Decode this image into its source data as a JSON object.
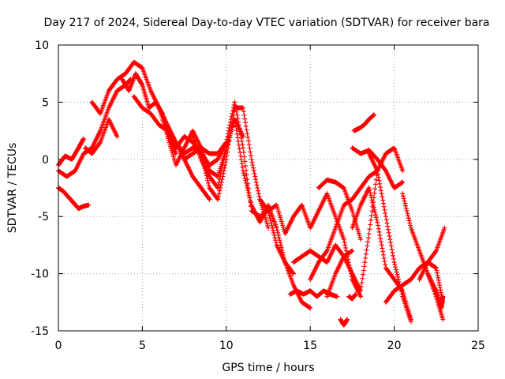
{
  "chart_data": {
    "type": "scatter",
    "title": "Day 217 of 2024, Sidereal Day-to-day VTEC variation (SDTVAR) for receiver bara",
    "xlabel": "GPS time / hours",
    "ylabel": "SDTVAR / TECUs",
    "xlim": [
      0,
      25
    ],
    "ylim": [
      -15,
      10
    ],
    "xticks": [
      0,
      5,
      10,
      15,
      20,
      25
    ],
    "yticks": [
      -15,
      -10,
      -5,
      0,
      5,
      10
    ],
    "xtick_labels": [
      "0",
      "5",
      "10",
      "15",
      "20",
      "25"
    ],
    "ytick_labels": [
      "-15",
      "-10",
      "-5",
      "0",
      "5",
      "10"
    ],
    "grid": true,
    "marker": "+",
    "series_color": "#ff0000",
    "tracks": [
      {
        "name": "t1",
        "x": [
          0,
          0.5,
          1.0,
          1.5,
          2.0,
          2.5,
          3.0,
          3.5,
          4.0,
          4.3
        ],
        "y": [
          -1.0,
          -1.5,
          -1.0,
          0.5,
          1.0,
          2.5,
          4.5,
          6.0,
          6.5,
          7.0
        ]
      },
      {
        "name": "t2",
        "x": [
          0,
          0.3,
          0.6,
          0.9,
          1.2,
          1.5,
          1.8
        ],
        "y": [
          -2.5,
          -2.8,
          -3.3,
          -3.8,
          -4.3,
          -4.1,
          -4.0
        ]
      },
      {
        "name": "t3",
        "x": [
          0,
          0.4,
          0.8,
          1.2,
          1.5
        ],
        "y": [
          -0.5,
          0.3,
          0.0,
          1.0,
          1.8
        ]
      },
      {
        "name": "t4",
        "x": [
          1.6,
          2.0,
          2.5,
          3.0,
          3.5
        ],
        "y": [
          1.0,
          0.5,
          1.5,
          3.5,
          2.0
        ]
      },
      {
        "name": "t5",
        "x": [
          2.0,
          2.5,
          3.0,
          3.5,
          4.0,
          4.5,
          5.0,
          5.5,
          6.0,
          6.5,
          7.0,
          7.5,
          8.0,
          8.5,
          9.0
        ],
        "y": [
          5.0,
          4.0,
          6.0,
          7.0,
          7.5,
          8.5,
          8.0,
          6.0,
          4.5,
          3.0,
          1.5,
          0.0,
          -1.5,
          -2.5,
          -3.5
        ]
      },
      {
        "name": "t6",
        "x": [
          3.8,
          4.2,
          4.6,
          5.0,
          5.4,
          5.8,
          6.2,
          6.6,
          7.0
        ],
        "y": [
          7.0,
          6.0,
          7.5,
          6.5,
          4.5,
          5.0,
          4.0,
          2.0,
          0.5
        ]
      },
      {
        "name": "t7",
        "x": [
          4.5,
          5.0,
          5.5,
          6.0,
          6.5,
          7.0,
          7.5,
          8.0,
          8.5,
          9.0,
          9.5,
          10.0
        ],
        "y": [
          5.5,
          4.5,
          4.0,
          3.0,
          2.5,
          1.0,
          2.0,
          1.5,
          0.5,
          -0.5,
          0.0,
          1.5
        ]
      },
      {
        "name": "t8",
        "x": [
          6.0,
          6.5,
          7.0,
          7.5,
          8.0,
          8.5,
          9.0,
          9.5,
          10.0,
          10.5,
          11.0
        ],
        "y": [
          4.5,
          2.0,
          -0.5,
          1.0,
          2.5,
          1.0,
          -1.0,
          -1.5,
          1.0,
          3.5,
          2.0
        ]
      },
      {
        "name": "t9",
        "x": [
          7.0,
          7.5,
          8.0,
          8.5,
          9.0,
          9.5,
          10.0,
          10.5,
          11.0,
          11.5,
          12.0,
          12.5
        ],
        "y": [
          1.5,
          0.5,
          1.0,
          0.5,
          -2.5,
          -3.5,
          0.0,
          4.5,
          4.5,
          0.0,
          -3.5,
          -6.0
        ]
      },
      {
        "name": "t10",
        "x": [
          7.5,
          8.0,
          8.5,
          9.0,
          9.5,
          10.0,
          10.5,
          11.0,
          11.5,
          12.0,
          12.5,
          13.0,
          13.5,
          14.0
        ],
        "y": [
          0.0,
          0.5,
          1.0,
          0.5,
          0.5,
          1.5,
          5.0,
          1.0,
          -4.5,
          -5.0,
          -4.5,
          -7.5,
          -9.0,
          -10.0
        ]
      },
      {
        "name": "t11",
        "x": [
          8.0,
          8.5,
          9.0,
          9.5,
          10.0,
          10.5,
          11.0,
          11.5,
          12.0,
          12.5,
          13.0,
          13.5,
          14.0,
          14.5,
          15.0
        ],
        "y": [
          2.0,
          0.0,
          -1.5,
          -2.5,
          1.0,
          3.5,
          -1.0,
          -4.0,
          -5.5,
          -4.0,
          -6.0,
          -9.0,
          -11.0,
          -12.5,
          -13.0
        ]
      },
      {
        "name": "t12",
        "x": [
          12.0,
          12.5,
          13.0,
          13.5,
          14.0,
          14.5
        ],
        "y": [
          -3.5,
          -4.5,
          -4.0,
          -6.5,
          -5.0,
          -4.0
        ]
      },
      {
        "name": "t13",
        "x": [
          13.8,
          14.2,
          14.6,
          15.0,
          15.4,
          15.8,
          16.2,
          16.6
        ],
        "y": [
          -11.8,
          -11.5,
          -11.8,
          -11.5,
          -12.0,
          -11.5,
          -11.8,
          -12.0
        ]
      },
      {
        "name": "t14",
        "x": [
          14.0,
          14.5,
          15.0,
          15.5,
          16.0,
          16.5,
          17.0,
          17.5
        ],
        "y": [
          -9.0,
          -8.5,
          -8.0,
          -8.5,
          -9.0,
          -7.5,
          -8.5,
          -8.0
        ]
      },
      {
        "name": "t15",
        "x": [
          14.5,
          15.0,
          15.5,
          16.0,
          16.5,
          17.0,
          17.5,
          18.0
        ],
        "y": [
          -4.0,
          -6.0,
          -4.5,
          -3.0,
          -5.0,
          -7.0,
          -10.5,
          -12.0
        ]
      },
      {
        "name": "t16",
        "x": [
          15.0,
          15.5,
          16.0,
          16.5,
          17.0,
          17.5,
          18.0,
          18.5,
          19.0
        ],
        "y": [
          -10.5,
          -9.0,
          -8.0,
          -6.0,
          -4.0,
          -3.5,
          -2.5,
          -1.5,
          -1.0
        ]
      },
      {
        "name": "t17",
        "x": [
          15.5,
          16.0,
          16.5,
          17.0,
          17.5,
          18.0
        ],
        "y": [
          -2.5,
          -1.8,
          -2.0,
          -2.5,
          -4.5,
          -7.0
        ]
      },
      {
        "name": "t18",
        "x": [
          16.0,
          16.5,
          17.0,
          17.5,
          18.0,
          18.5,
          19.0,
          19.5,
          20.0,
          20.5
        ],
        "y": [
          -12.0,
          -10.0,
          -8.5,
          -10.0,
          -11.5,
          -6.5,
          -1.0,
          0.5,
          1.0,
          -1.0
        ]
      },
      {
        "name": "t19",
        "x": [
          17.5,
          18.0,
          18.5,
          19.0,
          19.5,
          20.0,
          20.5,
          21.0
        ],
        "y": [
          -6.0,
          -4.0,
          -2.5,
          -5.5,
          -9.5,
          -10.5,
          -11.5,
          -14.0
        ]
      },
      {
        "name": "t20",
        "x": [
          17.6,
          17.9,
          18.2,
          18.5,
          18.8
        ],
        "y": [
          2.5,
          2.7,
          3.0,
          3.5,
          3.9
        ]
      },
      {
        "name": "t21",
        "x": [
          17.5,
          18.0,
          18.5,
          19.0,
          19.5,
          20.0,
          20.5
        ],
        "y": [
          1.0,
          0.5,
          0.8,
          0.0,
          -1.0,
          -2.5,
          -2.0
        ]
      },
      {
        "name": "t22",
        "x": [
          18.5,
          19.0,
          19.5,
          20.0,
          20.5,
          21.0
        ],
        "y": [
          0.5,
          -1.0,
          -5.0,
          -9.0,
          -12.0,
          -14.2
        ]
      },
      {
        "name": "t23",
        "x": [
          19.5,
          20.0,
          20.5,
          21.0,
          21.5,
          22.0,
          22.5,
          23.0
        ],
        "y": [
          -12.5,
          -11.5,
          -11.0,
          -10.5,
          -9.5,
          -9.0,
          -8.0,
          -6.0
        ]
      },
      {
        "name": "t24",
        "x": [
          20.5,
          21.0,
          21.5,
          22.0,
          22.5,
          22.9
        ],
        "y": [
          -3.0,
          -6.0,
          -8.0,
          -10.0,
          -12.0,
          -14.0
        ]
      },
      {
        "name": "t25",
        "x": [
          21.5,
          22.0,
          22.5,
          22.9
        ],
        "y": [
          -10.5,
          -9.0,
          -9.5,
          -12.5
        ]
      },
      {
        "name": "t26",
        "x": [
          22.0,
          22.5,
          22.8,
          22.9
        ],
        "y": [
          -10.0,
          -11.5,
          -13.0,
          -12.0
        ]
      },
      {
        "name": "t27",
        "x": [
          16.8,
          17.0,
          17.2
        ],
        "y": [
          -14.0,
          -14.5,
          -14.0
        ]
      },
      {
        "name": "t28",
        "x": [
          17.3,
          17.5,
          17.7
        ],
        "y": [
          -12.0,
          -12.2,
          -11.8
        ]
      }
    ]
  }
}
